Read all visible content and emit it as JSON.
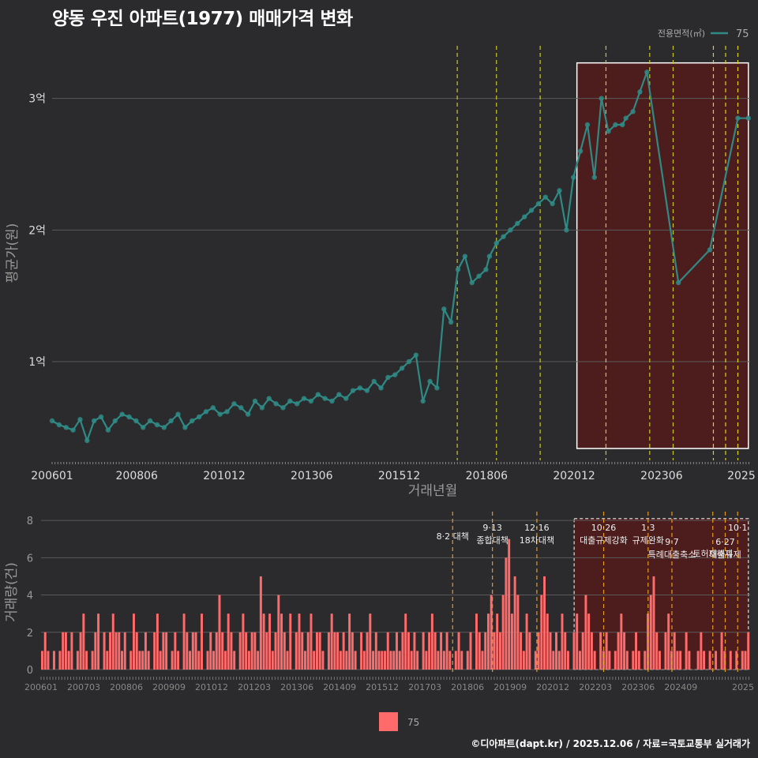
{
  "title": "양동 우진 아파트(1977) 매매가격 변화",
  "footer": "©디아파트(dapt.kr) / 2025.12.06 / 자료=국토교통부 실거래가",
  "colors": {
    "background": "#2b2b2d",
    "grid": "#5a5a5a",
    "price_line": "#2f8a85",
    "price_point": "#2f8a85",
    "volume_bar": "#ff6b6b",
    "policy_line_top": "#c8c82a",
    "policy_line_top_yellow": "#e0d020",
    "policy_line_bottom": "#e89a20",
    "highlight_fill": "#5a1a1a",
    "highlight_border": "#ffffff",
    "text": "#cccccc"
  },
  "chart_data": [
    {
      "type": "line",
      "title": "양동 우진 아파트(1977) 매매가격 변화",
      "xlabel": "거래년월",
      "ylabel": "평균가(원)",
      "legend_title": "전용면적(㎡)",
      "legend": [
        "75"
      ],
      "legend_position": "top-right",
      "x_tick_labels": [
        "200601",
        "200806",
        "201012",
        "201306",
        "201512",
        "201806",
        "202012",
        "202306",
        "2025"
      ],
      "y_ticks": [
        1,
        2,
        3
      ],
      "y_tick_labels": [
        "1억",
        "2억",
        "3억"
      ],
      "ylim": [
        0.25,
        3.4
      ],
      "xlim": [
        2006.0,
        2025.95
      ],
      "highlight_range": [
        2021.0,
        2025.9
      ],
      "policy_dates": [
        2017.58,
        2018.7,
        2019.95,
        2021.83,
        2023.08,
        2023.75,
        2024.9,
        2025.25,
        2025.6
      ],
      "series": [
        {
          "name": "75",
          "x": [
            2006.0,
            2006.2,
            2006.4,
            2006.6,
            2006.8,
            2007.0,
            2007.2,
            2007.4,
            2007.6,
            2007.8,
            2008.0,
            2008.2,
            2008.4,
            2008.6,
            2008.8,
            2009.0,
            2009.2,
            2009.4,
            2009.6,
            2009.8,
            2010.0,
            2010.2,
            2010.4,
            2010.6,
            2010.8,
            2011.0,
            2011.2,
            2011.4,
            2011.6,
            2011.8,
            2012.0,
            2012.2,
            2012.4,
            2012.6,
            2012.8,
            2013.0,
            2013.2,
            2013.4,
            2013.6,
            2013.8,
            2014.0,
            2014.2,
            2014.4,
            2014.6,
            2014.8,
            2015.0,
            2015.2,
            2015.4,
            2015.6,
            2015.8,
            2016.0,
            2016.2,
            2016.4,
            2016.6,
            2016.8,
            2017.0,
            2017.2,
            2017.4,
            2017.6,
            2017.8,
            2018.0,
            2018.2,
            2018.4,
            2018.5,
            2018.7,
            2018.9,
            2019.1,
            2019.3,
            2019.5,
            2019.7,
            2019.9,
            2020.1,
            2020.3,
            2020.5,
            2020.7,
            2020.9,
            2021.1,
            2021.3,
            2021.5,
            2021.7,
            2021.9,
            2022.1,
            2022.3,
            2022.4,
            2022.6,
            2022.8,
            2023.0,
            2023.9,
            2024.8,
            2025.6,
            2025.9
          ],
          "y": [
            0.55,
            0.52,
            0.5,
            0.48,
            0.56,
            0.4,
            0.55,
            0.58,
            0.48,
            0.55,
            0.6,
            0.58,
            0.55,
            0.5,
            0.55,
            0.52,
            0.5,
            0.55,
            0.6,
            0.5,
            0.55,
            0.58,
            0.62,
            0.65,
            0.6,
            0.62,
            0.68,
            0.65,
            0.6,
            0.7,
            0.65,
            0.72,
            0.68,
            0.65,
            0.7,
            0.68,
            0.72,
            0.7,
            0.75,
            0.72,
            0.7,
            0.75,
            0.72,
            0.78,
            0.8,
            0.78,
            0.85,
            0.8,
            0.88,
            0.9,
            0.95,
            1.0,
            1.05,
            0.7,
            0.85,
            0.8,
            1.4,
            1.3,
            1.7,
            1.8,
            1.6,
            1.65,
            1.7,
            1.8,
            1.9,
            1.95,
            2.0,
            2.05,
            2.1,
            2.15,
            2.2,
            2.25,
            2.2,
            2.3,
            2.0,
            2.4,
            2.6,
            2.8,
            2.4,
            3.0,
            2.75,
            2.8,
            2.8,
            2.85,
            2.9,
            3.05,
            3.2,
            1.6,
            1.85,
            2.85,
            2.85
          ]
        }
      ]
    },
    {
      "type": "bar",
      "xlabel": "",
      "ylabel": "거래량(건)",
      "legend": [
        "75"
      ],
      "legend_position": "bottom",
      "ylim": [
        0,
        8.3
      ],
      "y_ticks": [
        0,
        2,
        4,
        6,
        8
      ],
      "x_tick_labels": [
        "200601",
        "200703",
        "200806",
        "200909",
        "201012",
        "201203",
        "201306",
        "201409",
        "201512",
        "201703",
        "201806",
        "201909",
        "202012",
        "202203",
        "202306",
        "202409",
        "2025"
      ],
      "annotations": [
        {
          "x": 2017.58,
          "label": "8·2 대책"
        },
        {
          "x": 2018.7,
          "label": "9·13\n종합대책"
        },
        {
          "x": 2019.95,
          "label": "12·16\n18차대책"
        },
        {
          "x": 2021.83,
          "label": "10·26\n대출규제강화"
        },
        {
          "x": 2023.08,
          "label": "1·3\n규제완화"
        },
        {
          "x": 2023.75,
          "label": "9·7\n특례대출축소"
        },
        {
          "x": 2024.9,
          "label": "토허제해제"
        },
        {
          "x": 2025.25,
          "label": "6·27\n대출규제"
        },
        {
          "x": 2025.6,
          "label": "10·1"
        }
      ],
      "values": [
        1,
        2,
        1,
        0,
        1,
        0,
        1,
        2,
        2,
        1,
        2,
        0,
        1,
        2,
        3,
        1,
        0,
        1,
        2,
        3,
        0,
        2,
        1,
        2,
        3,
        2,
        2,
        1,
        2,
        0,
        1,
        3,
        2,
        1,
        1,
        2,
        1,
        0,
        2,
        3,
        1,
        2,
        2,
        0,
        1,
        2,
        1,
        0,
        3,
        2,
        1,
        2,
        2,
        1,
        3,
        0,
        1,
        2,
        1,
        2,
        4,
        2,
        1,
        3,
        2,
        1,
        0,
        2,
        3,
        2,
        1,
        2,
        2,
        1,
        5,
        3,
        2,
        3,
        1,
        2,
        4,
        3,
        2,
        1,
        3,
        0,
        2,
        3,
        2,
        1,
        2,
        3,
        1,
        2,
        2,
        1,
        0,
        2,
        3,
        2,
        2,
        1,
        2,
        1,
        3,
        2,
        1,
        0,
        2,
        1,
        2,
        3,
        1,
        2,
        1,
        1,
        1,
        2,
        1,
        1,
        2,
        1,
        2,
        3,
        2,
        1,
        2,
        1,
        0,
        2,
        1,
        2,
        3,
        2,
        1,
        2,
        1,
        2,
        1,
        0,
        1,
        2,
        1,
        0,
        1,
        2,
        0,
        3,
        2,
        1,
        2,
        3,
        4,
        2,
        3,
        2,
        4,
        6,
        7,
        3,
        5,
        4,
        2,
        1,
        3,
        2,
        0,
        1,
        2,
        4,
        5,
        3,
        2,
        1,
        2,
        1,
        3,
        2,
        1,
        0,
        2,
        3,
        1,
        2,
        4,
        3,
        2,
        1,
        0,
        2,
        1,
        2,
        1,
        0,
        1,
        2,
        3,
        2,
        1,
        0,
        1,
        2,
        1,
        0,
        1,
        3,
        4,
        5,
        2,
        1,
        0,
        2,
        3,
        1,
        2,
        1,
        1,
        0,
        2,
        1,
        0,
        0,
        1,
        2,
        1,
        0,
        1,
        0,
        1,
        0,
        2,
        1,
        0,
        1,
        0,
        1,
        0,
        1,
        1,
        2
      ]
    }
  ]
}
